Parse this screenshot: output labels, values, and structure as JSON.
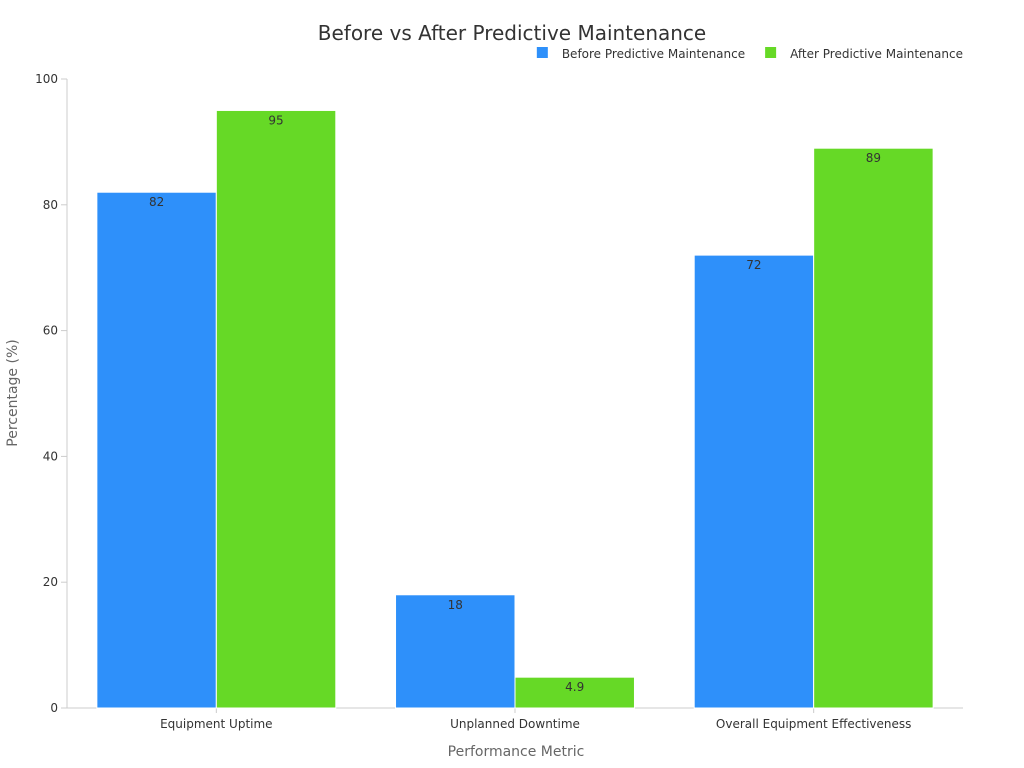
{
  "chart_data": {
    "type": "bar",
    "title": "Before vs After Predictive Maintenance",
    "xlabel": "Performance Metric",
    "ylabel": "Percentage (%)",
    "ylim": [
      0,
      100
    ],
    "yticks": [
      0,
      20,
      40,
      60,
      80,
      100
    ],
    "categories": [
      "Equipment Uptime",
      "Unplanned Downtime",
      "Overall Equipment Effectiveness"
    ],
    "series": [
      {
        "name": "Before Predictive Maintenance",
        "color": "#2e90fa",
        "values": [
          82,
          18,
          72
        ]
      },
      {
        "name": "After Predictive Maintenance",
        "color": "#66d926",
        "values": [
          95,
          4.9,
          89
        ]
      }
    ],
    "legend_position": "top-right",
    "grid": false
  }
}
